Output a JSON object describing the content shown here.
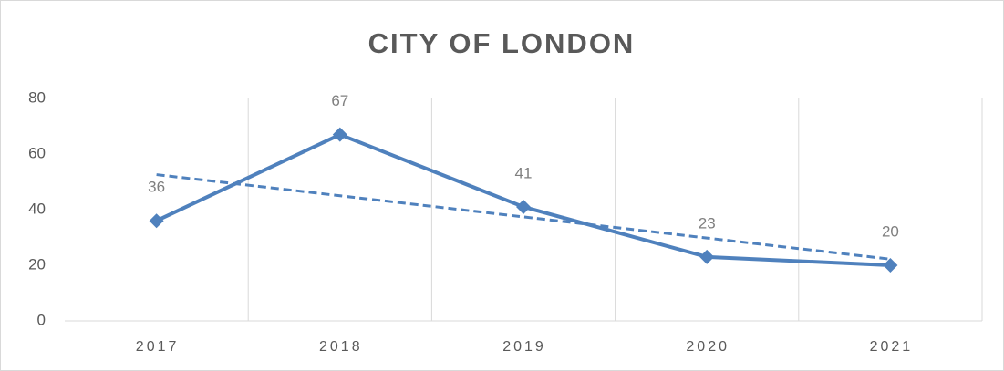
{
  "chart_data": {
    "type": "line",
    "title": "CITY OF LONDON",
    "categories": [
      "2017",
      "2018",
      "2019",
      "2020",
      "2021"
    ],
    "series": [
      {
        "values": [
          36,
          67,
          41,
          23,
          20
        ],
        "color": "#4f81bd"
      }
    ],
    "trendline": "linear",
    "ylim": [
      0,
      80
    ],
    "yticks": [
      0,
      20,
      40,
      60,
      80
    ],
    "grid": true
  }
}
